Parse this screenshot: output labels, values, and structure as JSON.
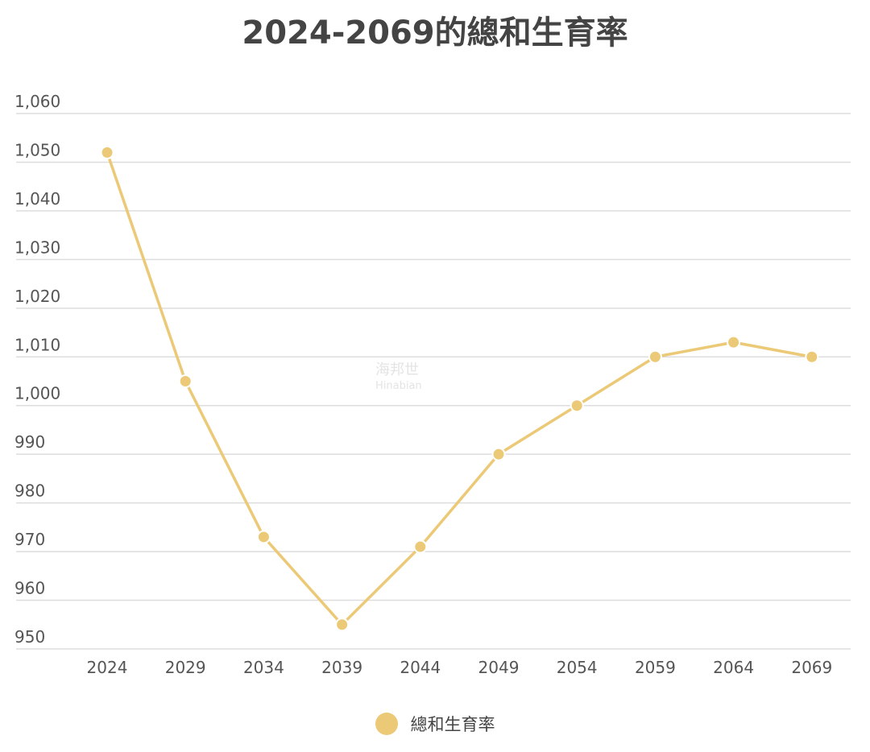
{
  "chart_data": {
    "type": "line",
    "title": "2024-2069的總和生育率",
    "xlabel": "",
    "ylabel": "",
    "categories": [
      "2024",
      "2029",
      "2034",
      "2039",
      "2044",
      "2049",
      "2054",
      "2059",
      "2064",
      "2069"
    ],
    "series": [
      {
        "name": "總和生育率",
        "values": [
          1052,
          1005,
          973,
          955,
          971,
          990,
          1000,
          1010,
          1013,
          1010
        ]
      }
    ],
    "ylim": [
      950,
      1060
    ],
    "yticks": [
      950,
      960,
      970,
      980,
      990,
      1000,
      1010,
      1020,
      1030,
      1040,
      1050,
      1060
    ],
    "ytick_labels": [
      "950",
      "960",
      "970",
      "980",
      "990",
      "1,000",
      "1,010",
      "1,020",
      "1,030",
      "1,040",
      "1,050",
      "1,060"
    ],
    "grid": true,
    "legend_position": "bottom-center",
    "color": "#ebc976",
    "gridline_color": "#dddddd"
  },
  "watermark": {
    "line1": "海邦世",
    "line2": "Hinabian"
  }
}
